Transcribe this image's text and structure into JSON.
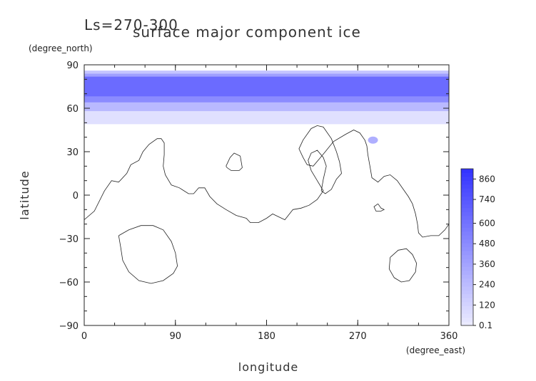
{
  "chart_data": {
    "type": "heatmap",
    "title_period": "Ls=270-300",
    "title": "surface major component ice",
    "xlabel": "longitude",
    "ylabel": "latitude",
    "x_unit": "(degree_east)",
    "y_unit": "(degree_north)",
    "xlim": [
      0,
      360
    ],
    "ylim": [
      -90,
      90
    ],
    "x_ticks": [
      "0",
      "90",
      "180",
      "270",
      "360"
    ],
    "y_ticks": [
      "90",
      "60",
      "30",
      "0",
      "−30",
      "−60",
      "−90"
    ],
    "colorbar": {
      "labels": [
        "860",
        "740",
        "600",
        "480",
        "360",
        "240",
        "120",
        "0.1"
      ],
      "min": 0.1,
      "max": 920
    },
    "ice_bands": [
      {
        "lat_lo": 49,
        "lat_hi": 58,
        "level": 60
      },
      {
        "lat_lo": 58,
        "lat_hi": 64,
        "level": 250
      },
      {
        "lat_lo": 64,
        "lat_hi": 68,
        "level": 480
      },
      {
        "lat_lo": 68,
        "lat_hi": 82,
        "level": 640
      },
      {
        "lat_lo": 82,
        "lat_hi": 84,
        "level": 380
      },
      {
        "lat_lo": 84,
        "lat_hi": 86,
        "level": 200
      }
    ],
    "ice_patch": {
      "lon": 285,
      "lat": 38,
      "level": 300
    },
    "topography_contours": [
      [
        [
          0,
          -17
        ],
        [
          10,
          -11
        ],
        [
          20,
          3
        ],
        [
          27,
          10
        ],
        [
          34,
          9
        ],
        [
          42,
          15
        ],
        [
          46,
          21
        ],
        [
          54,
          24
        ],
        [
          58,
          30
        ],
        [
          64,
          35
        ],
        [
          72,
          39
        ],
        [
          76,
          39
        ],
        [
          79,
          36
        ],
        [
          79,
          28
        ],
        [
          78,
          20
        ],
        [
          80,
          14
        ],
        [
          86,
          7
        ],
        [
          94,
          5
        ],
        [
          103,
          1
        ],
        [
          108,
          1
        ],
        [
          113,
          5
        ],
        [
          119,
          5
        ],
        [
          124,
          -1
        ],
        [
          131,
          -6
        ],
        [
          140,
          -10
        ],
        [
          150,
          -14
        ],
        [
          160,
          -16
        ],
        [
          164,
          -19
        ],
        [
          172,
          -19
        ],
        [
          180,
          -16
        ],
        [
          186,
          -13
        ],
        [
          192,
          -15
        ],
        [
          198,
          -17
        ],
        [
          206,
          -10
        ],
        [
          214,
          -9
        ],
        [
          222,
          -7
        ],
        [
          230,
          -3
        ],
        [
          236,
          3
        ],
        [
          230,
          10
        ],
        [
          224,
          17
        ],
        [
          221,
          24
        ],
        [
          224,
          29
        ],
        [
          230,
          31
        ],
        [
          236,
          26
        ],
        [
          239,
          20
        ],
        [
          236,
          11
        ],
        [
          234,
          3
        ],
        [
          238,
          1
        ],
        [
          244,
          4
        ],
        [
          249,
          11
        ],
        [
          254,
          15
        ],
        [
          252,
          23
        ],
        [
          249,
          30
        ],
        [
          244,
          39
        ],
        [
          236,
          47
        ],
        [
          230,
          48
        ],
        [
          224,
          46
        ],
        [
          216,
          38
        ],
        [
          212,
          32
        ],
        [
          216,
          26
        ],
        [
          220,
          21
        ],
        [
          226,
          20
        ],
        [
          232,
          25
        ],
        [
          238,
          30
        ],
        [
          246,
          37
        ],
        [
          258,
          42
        ],
        [
          266,
          45
        ],
        [
          272,
          43
        ],
        [
          277,
          38
        ],
        [
          279,
          34
        ],
        [
          280,
          28
        ],
        [
          282,
          20
        ],
        [
          284,
          12
        ],
        [
          290,
          9
        ],
        [
          296,
          13
        ],
        [
          302,
          14
        ],
        [
          309,
          10
        ],
        [
          315,
          4
        ],
        [
          320,
          -1
        ],
        [
          324,
          -6
        ],
        [
          327,
          -13
        ],
        [
          329,
          -20
        ],
        [
          330,
          -26
        ],
        [
          334,
          -29
        ],
        [
          342,
          -28
        ],
        [
          350,
          -28
        ],
        [
          356,
          -24
        ],
        [
          360,
          -20
        ]
      ],
      [
        [
          34,
          -28
        ],
        [
          44,
          -24
        ],
        [
          56,
          -21
        ],
        [
          68,
          -21
        ],
        [
          78,
          -24
        ],
        [
          86,
          -32
        ],
        [
          90,
          -40
        ],
        [
          92,
          -49
        ],
        [
          88,
          -54
        ],
        [
          78,
          -59
        ],
        [
          66,
          -61
        ],
        [
          54,
          -59
        ],
        [
          44,
          -53
        ],
        [
          38,
          -45
        ],
        [
          36,
          -36
        ],
        [
          34,
          -28
        ]
      ],
      [
        [
          140,
          20
        ],
        [
          144,
          26
        ],
        [
          148,
          29
        ],
        [
          154,
          27
        ],
        [
          156,
          19
        ],
        [
          153,
          17
        ],
        [
          145,
          17
        ],
        [
          141,
          19
        ],
        [
          140,
          20
        ]
      ],
      [
        [
          290,
          -6
        ],
        [
          293,
          -9
        ],
        [
          296,
          -10
        ],
        [
          293,
          -11
        ],
        [
          288,
          -11
        ],
        [
          286,
          -8
        ],
        [
          290,
          -6
        ]
      ],
      [
        [
          302,
          -43
        ],
        [
          310,
          -38
        ],
        [
          318,
          -37
        ],
        [
          324,
          -41
        ],
        [
          328,
          -47
        ],
        [
          327,
          -53
        ],
        [
          321,
          -59
        ],
        [
          313,
          -60
        ],
        [
          306,
          -57
        ],
        [
          301,
          -51
        ],
        [
          302,
          -43
        ]
      ]
    ]
  }
}
